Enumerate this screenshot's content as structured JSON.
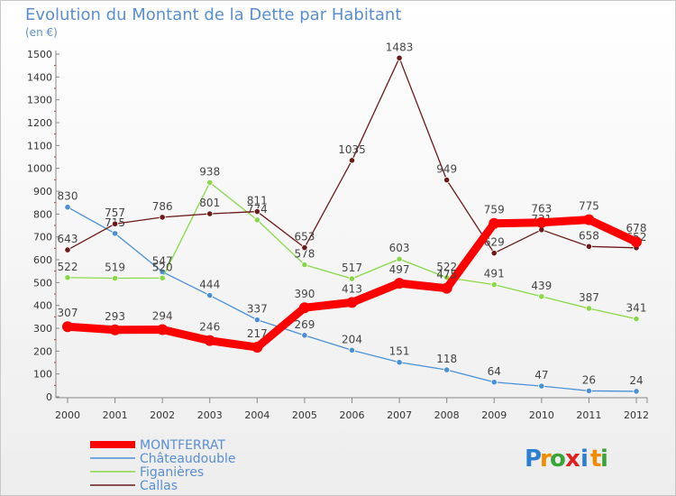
{
  "chart_data": {
    "type": "line",
    "title": "Evolution du Montant de la Dette par Habitant",
    "subtitle": "(en €)",
    "x": [
      "2000",
      "2001",
      "2002",
      "2003",
      "2004",
      "2005",
      "2006",
      "2007",
      "2008",
      "2009",
      "2010",
      "2011",
      "2012"
    ],
    "yticks": [
      0,
      100,
      200,
      300,
      400,
      500,
      600,
      700,
      800,
      900,
      1000,
      1100,
      1200,
      1300,
      1400,
      1500
    ],
    "ylim": [
      0,
      1500
    ],
    "grid": false,
    "legend_placement": "bottom-left",
    "series": [
      {
        "name": "MONTFERRAT",
        "color": "#ff0000",
        "values": [
          307,
          293,
          294,
          246,
          217,
          390,
          413,
          497,
          475,
          759,
          763,
          775,
          678
        ]
      },
      {
        "name": "Châteaudouble",
        "color": "#4a90d9",
        "values": [
          830,
          715,
          547,
          444,
          337,
          269,
          204,
          151,
          118,
          64,
          47,
          26,
          24
        ]
      },
      {
        "name": "Figanières",
        "color": "#88d848",
        "values": [
          522,
          519,
          520,
          938,
          774,
          578,
          517,
          603,
          522,
          491,
          439,
          387,
          341
        ]
      },
      {
        "name": "Callas",
        "color": "#6b1a1a",
        "values": [
          643,
          757,
          786,
          801,
          811,
          653,
          1035,
          1483,
          949,
          629,
          731,
          658,
          652
        ]
      }
    ],
    "brand": {
      "letters": [
        "P",
        "r",
        "o",
        "x",
        "i",
        "t",
        "i"
      ],
      "colors": [
        "#2d7fd0",
        "#f08a00",
        "#3aa33a",
        "#e02020",
        "#2d7fd0",
        "#f08a00",
        "#3aa33a"
      ]
    }
  }
}
